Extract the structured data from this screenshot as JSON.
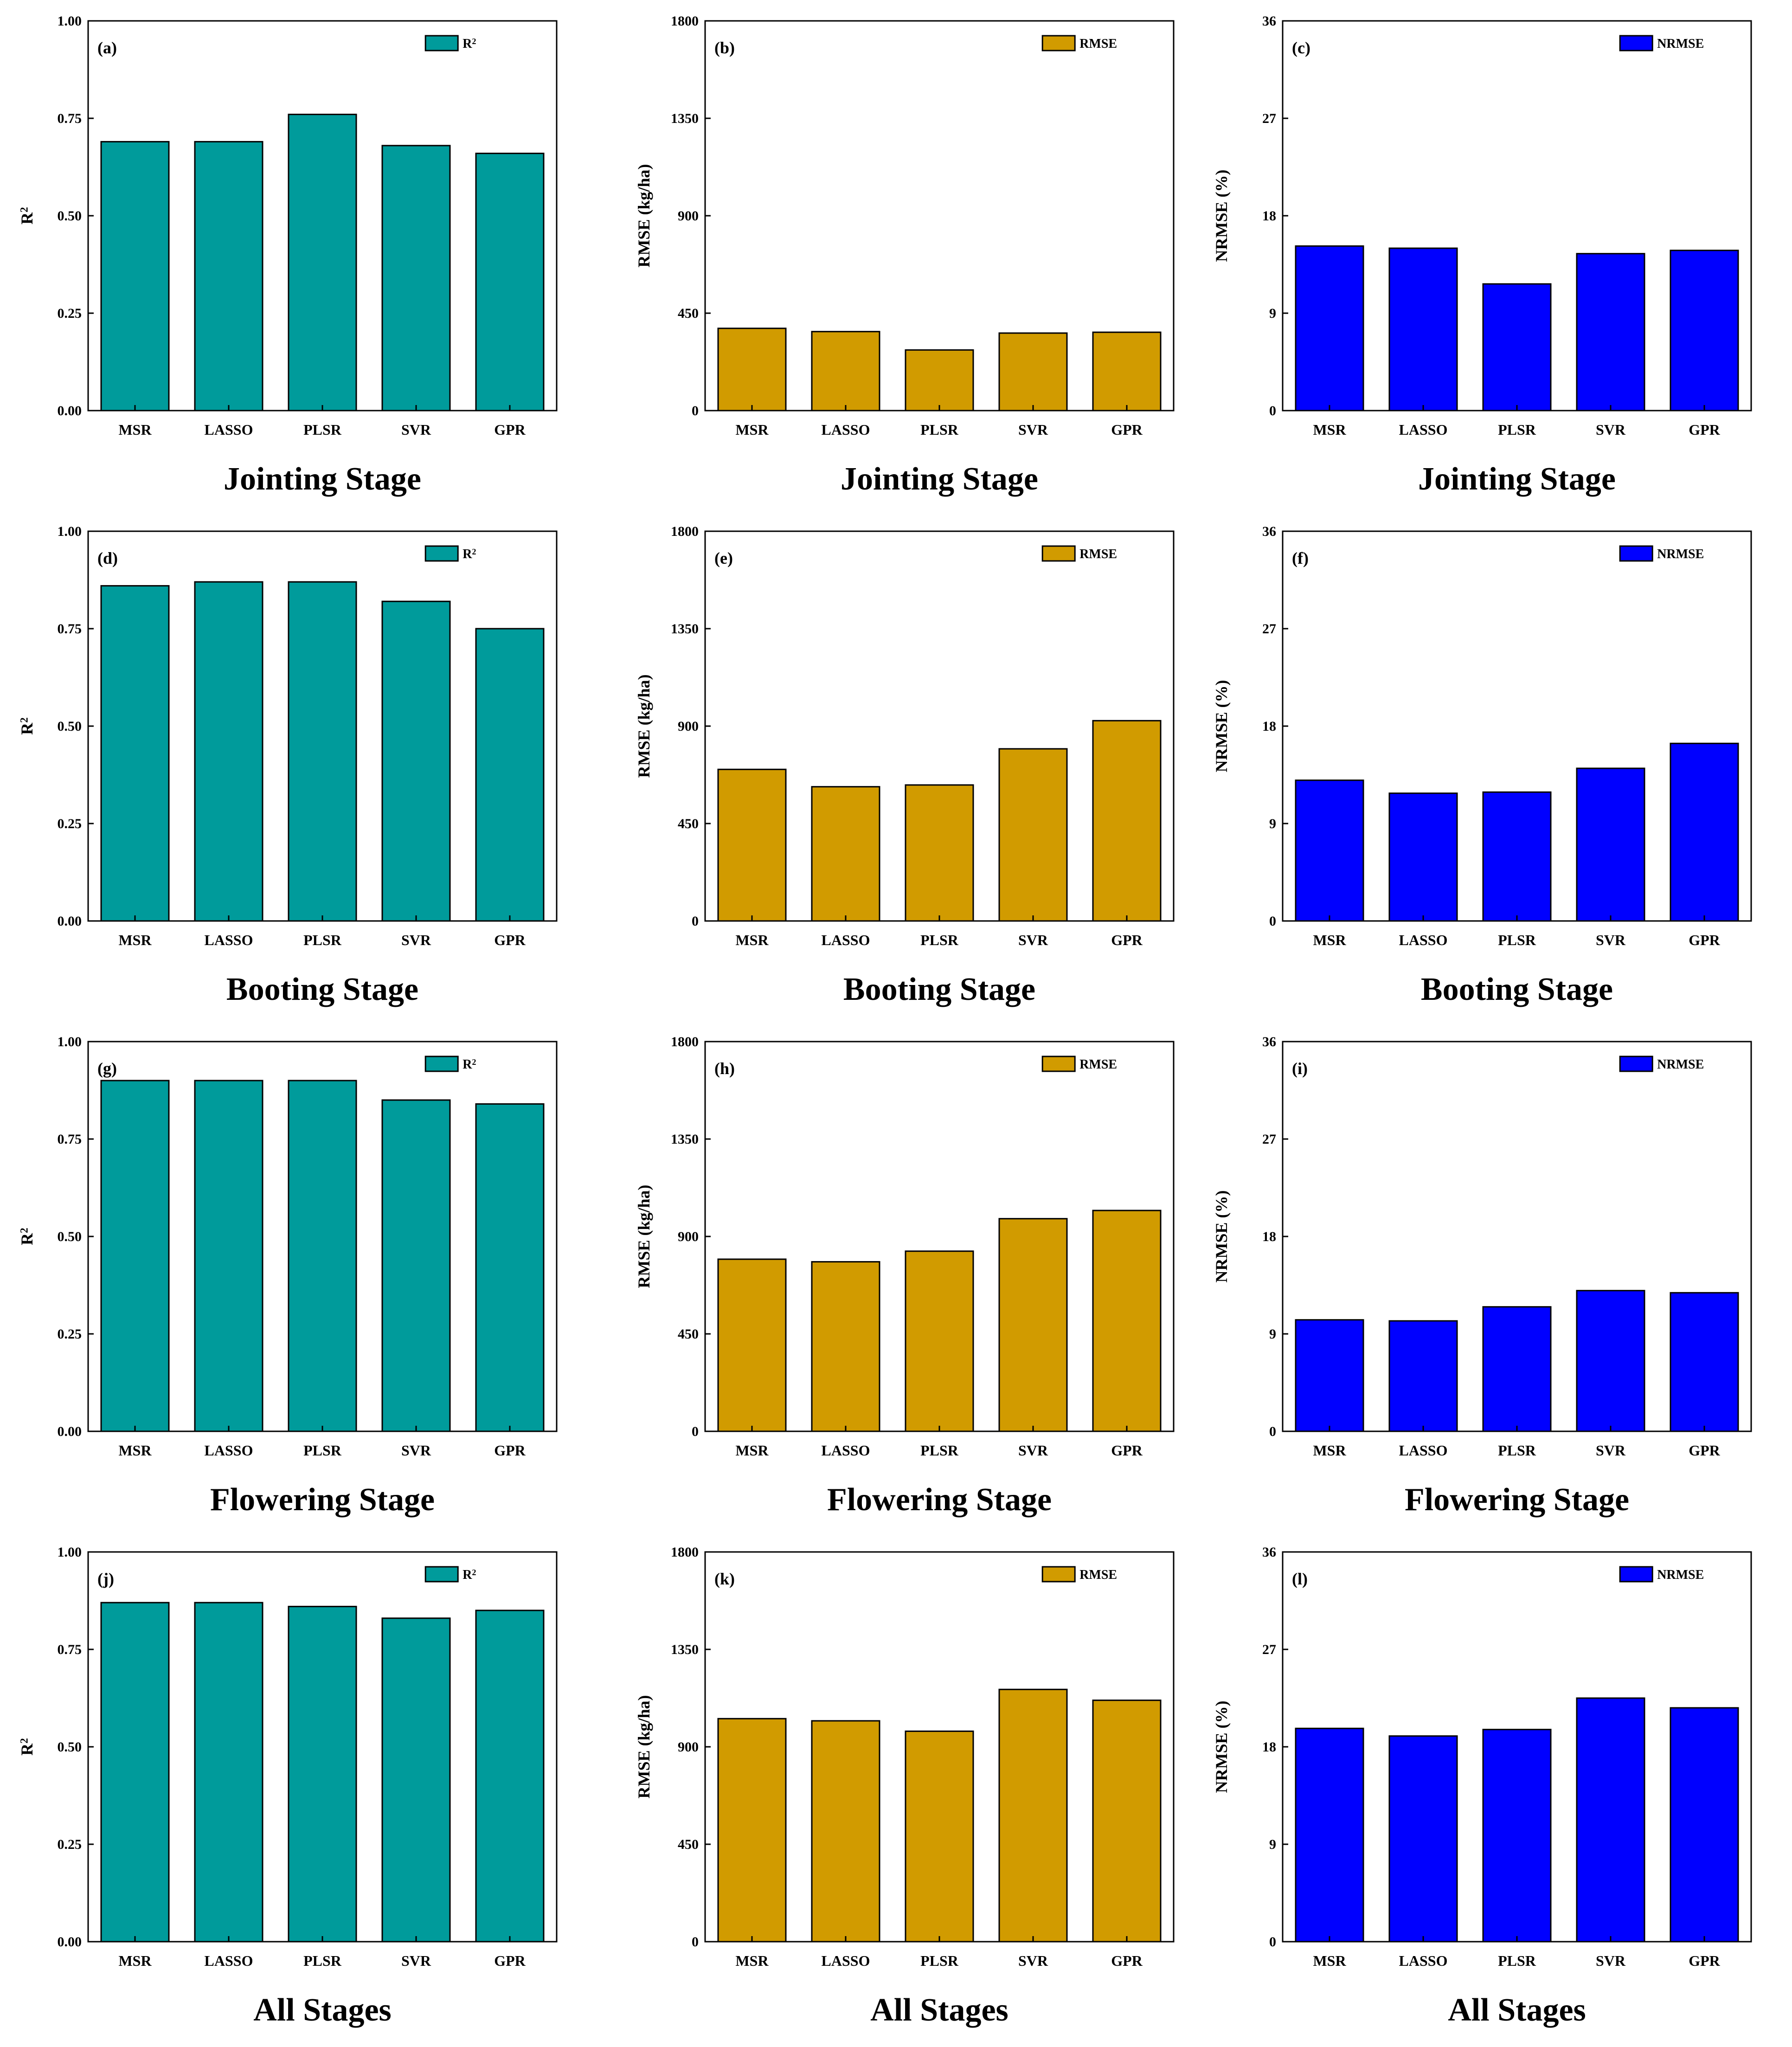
{
  "figure": {
    "categories": [
      "MSR",
      "LASSO",
      "PLSR",
      "SVR",
      "GPR"
    ],
    "stage_titles": [
      "Jointing Stage",
      "Booting Stage",
      "Flowering Stage",
      "All Stages"
    ]
  },
  "chart_data": [
    {
      "id": "a",
      "type": "bar",
      "panel_label": "(a)",
      "title": "Jointing Stage",
      "ylabel": "R2",
      "legend": "R2",
      "ylim": [
        0,
        1
      ],
      "yticks": [
        "0.00",
        "0.25",
        "0.50",
        "0.75",
        "1.00"
      ],
      "color": "#009B9B",
      "categories": [
        "MSR",
        "LASSO",
        "PLSR",
        "SVR",
        "GPR"
      ],
      "values": [
        0.69,
        0.69,
        0.76,
        0.68,
        0.66
      ]
    },
    {
      "id": "b",
      "type": "bar",
      "panel_label": "(b)",
      "title": "Jointing Stage",
      "ylabel": "RMSE (kg/ha)",
      "legend": "RMSE",
      "ylim": [
        0,
        1800
      ],
      "yticks": [
        "0",
        "450",
        "900",
        "1350",
        "1800"
      ],
      "color": "#D19B00",
      "categories": [
        "MSR",
        "LASSO",
        "PLSR",
        "SVR",
        "GPR"
      ],
      "values": [
        380,
        365,
        280,
        358,
        362
      ]
    },
    {
      "id": "c",
      "type": "bar",
      "panel_label": "(c)",
      "title": "Jointing Stage",
      "ylabel": "NRMSE (%)",
      "legend": "NRMSE",
      "ylim": [
        0,
        36
      ],
      "yticks": [
        "0",
        "9",
        "18",
        "27",
        "36"
      ],
      "color": "#0000FF",
      "categories": [
        "MSR",
        "LASSO",
        "PLSR",
        "SVR",
        "GPR"
      ],
      "values": [
        15.2,
        15.0,
        11.7,
        14.5,
        14.8
      ]
    },
    {
      "id": "d",
      "type": "bar",
      "panel_label": "(d)",
      "title": "Booting Stage",
      "ylabel": "R2",
      "legend": "R2",
      "ylim": [
        0,
        1
      ],
      "yticks": [
        "0.00",
        "0.25",
        "0.50",
        "0.75",
        "1.00"
      ],
      "color": "#009B9B",
      "categories": [
        "MSR",
        "LASSO",
        "PLSR",
        "SVR",
        "GPR"
      ],
      "values": [
        0.86,
        0.87,
        0.87,
        0.82,
        0.75
      ]
    },
    {
      "id": "e",
      "type": "bar",
      "panel_label": "(e)",
      "title": "Booting Stage",
      "ylabel": "RMSE (kg/ha)",
      "legend": "RMSE",
      "ylim": [
        0,
        1800
      ],
      "yticks": [
        "0",
        "450",
        "900",
        "1350",
        "1800"
      ],
      "color": "#D19B00",
      "categories": [
        "MSR",
        "LASSO",
        "PLSR",
        "SVR",
        "GPR"
      ],
      "values": [
        700,
        620,
        628,
        795,
        925
      ]
    },
    {
      "id": "f",
      "type": "bar",
      "panel_label": "(f)",
      "title": "Booting Stage",
      "ylabel": "NRMSE (%)",
      "legend": "NRMSE",
      "ylim": [
        0,
        36
      ],
      "yticks": [
        "0",
        "9",
        "18",
        "27",
        "36"
      ],
      "color": "#0000FF",
      "categories": [
        "MSR",
        "LASSO",
        "PLSR",
        "SVR",
        "GPR"
      ],
      "values": [
        13.0,
        11.8,
        11.9,
        14.1,
        16.4
      ]
    },
    {
      "id": "g",
      "type": "bar",
      "panel_label": "(g)",
      "title": "Flowering Stage",
      "ylabel": "R2",
      "legend": "R2",
      "ylim": [
        0,
        1
      ],
      "yticks": [
        "0.00",
        "0.25",
        "0.50",
        "0.75",
        "1.00"
      ],
      "color": "#009B9B",
      "categories": [
        "MSR",
        "LASSO",
        "PLSR",
        "SVR",
        "GPR"
      ],
      "values": [
        0.9,
        0.9,
        0.9,
        0.85,
        0.84
      ]
    },
    {
      "id": "h",
      "type": "bar",
      "panel_label": "(h)",
      "title": "Flowering Stage",
      "ylabel": "RMSE (kg/ha)",
      "legend": "RMSE",
      "ylim": [
        0,
        1800
      ],
      "yticks": [
        "0",
        "450",
        "900",
        "1350",
        "1800"
      ],
      "color": "#D19B00",
      "categories": [
        "MSR",
        "LASSO",
        "PLSR",
        "SVR",
        "GPR"
      ],
      "values": [
        795,
        783,
        832,
        982,
        1020
      ]
    },
    {
      "id": "i",
      "type": "bar",
      "panel_label": "(i)",
      "title": "Flowering Stage",
      "ylabel": "NRMSE (%)",
      "legend": "NRMSE",
      "ylim": [
        0,
        36
      ],
      "yticks": [
        "0",
        "9",
        "18",
        "27",
        "36"
      ],
      "color": "#0000FF",
      "categories": [
        "MSR",
        "LASSO",
        "PLSR",
        "SVR",
        "GPR"
      ],
      "values": [
        10.3,
        10.2,
        11.5,
        13.0,
        12.8
      ]
    },
    {
      "id": "j",
      "type": "bar",
      "panel_label": "(j)",
      "title": "All Stages",
      "ylabel": "R2",
      "legend": "R2",
      "ylim": [
        0,
        1
      ],
      "yticks": [
        "0.00",
        "0.25",
        "0.50",
        "0.75",
        "1.00"
      ],
      "color": "#009B9B",
      "categories": [
        "MSR",
        "LASSO",
        "PLSR",
        "SVR",
        "GPR"
      ],
      "values": [
        0.87,
        0.87,
        0.86,
        0.83,
        0.85
      ]
    },
    {
      "id": "k",
      "type": "bar",
      "panel_label": "(k)",
      "title": "All Stages",
      "ylabel": "RMSE (kg/ha)",
      "legend": "RMSE",
      "ylim": [
        0,
        1800
      ],
      "yticks": [
        "0",
        "450",
        "900",
        "1350",
        "1800"
      ],
      "color": "#D19B00",
      "categories": [
        "MSR",
        "LASSO",
        "PLSR",
        "SVR",
        "GPR"
      ],
      "values": [
        1030,
        1020,
        972,
        1165,
        1115
      ]
    },
    {
      "id": "l",
      "type": "bar",
      "panel_label": "(l)",
      "title": "All Stages",
      "ylabel": "NRMSE (%)",
      "legend": "NRMSE",
      "ylim": [
        0,
        36
      ],
      "yticks": [
        "0",
        "9",
        "18",
        "27",
        "36"
      ],
      "color": "#0000FF",
      "categories": [
        "MSR",
        "LASSO",
        "PLSR",
        "SVR",
        "GPR"
      ],
      "values": [
        19.7,
        19.0,
        19.6,
        22.5,
        21.6
      ]
    }
  ]
}
